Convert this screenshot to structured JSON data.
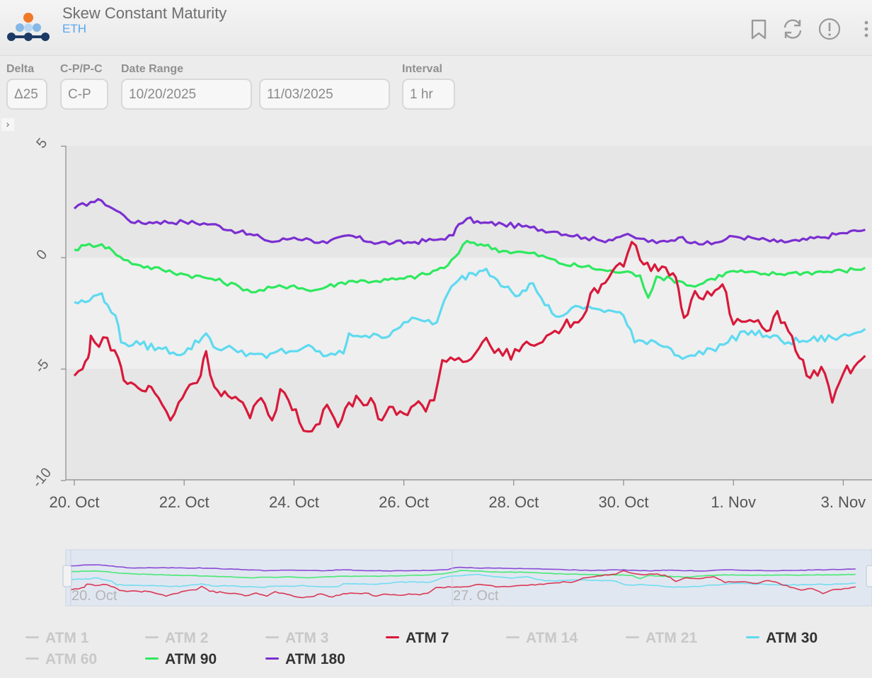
{
  "header": {
    "title": "Skew Constant Maturity",
    "subtitle": "ETH",
    "icons": [
      "bookmark-icon",
      "refresh-icon",
      "alert-icon",
      "more-icon"
    ]
  },
  "controls": {
    "delta": {
      "label": "Delta",
      "value": "Δ25"
    },
    "cp": {
      "label": "C-P/P-C",
      "value": "C-P"
    },
    "date_range": {
      "label": "Date Range",
      "start": "10/20/2025",
      "end": "11/03/2025"
    },
    "interval": {
      "label": "Interval",
      "value": "1 hr"
    }
  },
  "chart_data": {
    "type": "line",
    "x_axis": {
      "ticks": [
        "20. Oct",
        "22. Oct",
        "24. Oct",
        "26. Oct",
        "28. Oct",
        "30. Oct",
        "1. Nov",
        "3. Nov"
      ],
      "range_days": [
        0,
        14.5
      ]
    },
    "y_axis": {
      "ticks": [
        "5",
        "0",
        "-5",
        "-10"
      ],
      "range": [
        -10,
        5
      ]
    },
    "navigator": {
      "labels": [
        "20. Oct",
        "27. Oct"
      ]
    },
    "series": [
      {
        "name": "ATM 180",
        "color": "#7b2fd0",
        "visible": true,
        "points": [
          [
            0,
            2.2
          ],
          [
            0.3,
            2.5
          ],
          [
            0.5,
            2.55
          ],
          [
            0.7,
            2.2
          ],
          [
            0.9,
            1.9
          ],
          [
            1.1,
            1.55
          ],
          [
            1.5,
            1.6
          ],
          [
            2.0,
            1.6
          ],
          [
            2.5,
            1.5
          ],
          [
            3.0,
            1.15
          ],
          [
            3.4,
            0.9
          ],
          [
            3.6,
            0.7
          ],
          [
            4.0,
            0.9
          ],
          [
            4.3,
            0.8
          ],
          [
            4.6,
            0.65
          ],
          [
            5.0,
            1.0
          ],
          [
            5.4,
            0.7
          ],
          [
            5.8,
            0.65
          ],
          [
            6.2,
            0.7
          ],
          [
            6.6,
            0.8
          ],
          [
            6.9,
            1.0
          ],
          [
            7.0,
            1.5
          ],
          [
            7.15,
            1.75
          ],
          [
            7.4,
            1.55
          ],
          [
            7.8,
            1.5
          ],
          [
            8.3,
            1.35
          ],
          [
            8.8,
            1.15
          ],
          [
            9.3,
            0.9
          ],
          [
            9.6,
            0.75
          ],
          [
            10.0,
            1.0
          ],
          [
            10.3,
            0.85
          ],
          [
            10.6,
            0.65
          ],
          [
            11.0,
            0.9
          ],
          [
            11.3,
            0.7
          ],
          [
            11.6,
            0.6
          ],
          [
            12.0,
            0.95
          ],
          [
            12.4,
            0.85
          ],
          [
            12.8,
            0.7
          ],
          [
            13.2,
            0.75
          ],
          [
            13.6,
            0.9
          ],
          [
            14.0,
            1.1
          ],
          [
            14.4,
            1.25
          ]
        ]
      },
      {
        "name": "ATM 90",
        "color": "#2ee85e",
        "visible": true,
        "points": [
          [
            0,
            0.35
          ],
          [
            0.2,
            0.55
          ],
          [
            0.5,
            0.6
          ],
          [
            0.7,
            0.3
          ],
          [
            0.9,
            -0.1
          ],
          [
            1.2,
            -0.35
          ],
          [
            1.6,
            -0.55
          ],
          [
            2.0,
            -0.75
          ],
          [
            2.5,
            -0.95
          ],
          [
            3.0,
            -1.3
          ],
          [
            3.3,
            -1.55
          ],
          [
            3.6,
            -1.35
          ],
          [
            4.0,
            -1.25
          ],
          [
            4.3,
            -1.5
          ],
          [
            4.6,
            -1.3
          ],
          [
            5.0,
            -1.05
          ],
          [
            5.5,
            -1.05
          ],
          [
            6.0,
            -0.95
          ],
          [
            6.4,
            -0.75
          ],
          [
            6.8,
            -0.35
          ],
          [
            7.0,
            0.2
          ],
          [
            7.15,
            0.75
          ],
          [
            7.4,
            0.6
          ],
          [
            7.8,
            0.3
          ],
          [
            8.3,
            0.2
          ],
          [
            8.6,
            0.0
          ],
          [
            8.9,
            -0.3
          ],
          [
            9.3,
            -0.4
          ],
          [
            9.7,
            -0.6
          ],
          [
            10.0,
            -0.65
          ],
          [
            10.3,
            -0.8
          ],
          [
            10.45,
            -1.8
          ],
          [
            10.6,
            -0.85
          ],
          [
            11.0,
            -1.05
          ],
          [
            11.3,
            -1.3
          ],
          [
            11.6,
            -0.95
          ],
          [
            12.0,
            -0.6
          ],
          [
            12.5,
            -0.75
          ],
          [
            13.0,
            -0.7
          ],
          [
            13.5,
            -0.65
          ],
          [
            14.0,
            -0.6
          ],
          [
            14.4,
            -0.45
          ]
        ]
      },
      {
        "name": "ATM 30",
        "color": "#5edaf0",
        "visible": true,
        "points": [
          [
            0,
            -2.0
          ],
          [
            0.2,
            -2.0
          ],
          [
            0.5,
            -1.6
          ],
          [
            0.6,
            -2.1
          ],
          [
            0.75,
            -2.6
          ],
          [
            0.85,
            -3.8
          ],
          [
            1.2,
            -3.9
          ],
          [
            1.6,
            -4.1
          ],
          [
            2.0,
            -4.3
          ],
          [
            2.4,
            -3.4
          ],
          [
            2.6,
            -4.1
          ],
          [
            2.9,
            -4.1
          ],
          [
            3.2,
            -4.3
          ],
          [
            3.5,
            -4.5
          ],
          [
            3.7,
            -4.2
          ],
          [
            4.0,
            -4.2
          ],
          [
            4.2,
            -4.0
          ],
          [
            4.4,
            -4.2
          ],
          [
            4.6,
            -4.4
          ],
          [
            4.9,
            -4.3
          ],
          [
            5.0,
            -3.4
          ],
          [
            5.3,
            -3.5
          ],
          [
            5.6,
            -3.6
          ],
          [
            6.0,
            -2.9
          ],
          [
            6.3,
            -2.8
          ],
          [
            6.6,
            -2.9
          ],
          [
            6.8,
            -1.6
          ],
          [
            7.0,
            -1.0
          ],
          [
            7.25,
            -0.7
          ],
          [
            7.5,
            -0.5
          ],
          [
            7.7,
            -1.0
          ],
          [
            7.9,
            -1.3
          ],
          [
            8.1,
            -1.7
          ],
          [
            8.35,
            -1.15
          ],
          [
            8.5,
            -1.8
          ],
          [
            8.7,
            -2.5
          ],
          [
            8.9,
            -2.6
          ],
          [
            9.2,
            -2.2
          ],
          [
            9.5,
            -2.3
          ],
          [
            9.8,
            -2.4
          ],
          [
            10.0,
            -2.6
          ],
          [
            10.2,
            -3.8
          ],
          [
            10.5,
            -3.7
          ],
          [
            10.8,
            -4.0
          ],
          [
            11.0,
            -4.4
          ],
          [
            11.3,
            -4.4
          ],
          [
            11.6,
            -4.1
          ],
          [
            11.9,
            -3.8
          ],
          [
            12.2,
            -3.3
          ],
          [
            12.6,
            -3.5
          ],
          [
            13.0,
            -3.8
          ],
          [
            13.4,
            -3.7
          ],
          [
            13.8,
            -3.6
          ],
          [
            14.1,
            -3.5
          ],
          [
            14.4,
            -3.2
          ]
        ]
      },
      {
        "name": "ATM 7",
        "color": "#d8193a",
        "visible": true,
        "points": [
          [
            0,
            -5.3
          ],
          [
            0.15,
            -5.0
          ],
          [
            0.25,
            -4.5
          ],
          [
            0.3,
            -3.5
          ],
          [
            0.45,
            -4.0
          ],
          [
            0.6,
            -3.6
          ],
          [
            0.8,
            -4.5
          ],
          [
            0.9,
            -5.5
          ],
          [
            1.1,
            -5.7
          ],
          [
            1.3,
            -6.0
          ],
          [
            1.4,
            -5.8
          ],
          [
            1.6,
            -6.6
          ],
          [
            1.75,
            -7.3
          ],
          [
            1.9,
            -6.5
          ],
          [
            2.1,
            -5.7
          ],
          [
            2.3,
            -5.3
          ],
          [
            2.4,
            -4.2
          ],
          [
            2.55,
            -5.8
          ],
          [
            2.8,
            -6.2
          ],
          [
            3.0,
            -6.4
          ],
          [
            3.2,
            -7.2
          ],
          [
            3.4,
            -6.3
          ],
          [
            3.6,
            -7.3
          ],
          [
            3.75,
            -5.9
          ],
          [
            3.9,
            -6.4
          ],
          [
            4.1,
            -7.4
          ],
          [
            4.25,
            -7.8
          ],
          [
            4.4,
            -7.5
          ],
          [
            4.6,
            -6.6
          ],
          [
            4.8,
            -7.6
          ],
          [
            5.0,
            -6.5
          ],
          [
            5.2,
            -6.4
          ],
          [
            5.4,
            -6.3
          ],
          [
            5.6,
            -7.3
          ],
          [
            5.8,
            -6.7
          ],
          [
            6.0,
            -7.0
          ],
          [
            6.2,
            -6.6
          ],
          [
            6.4,
            -6.9
          ],
          [
            6.55,
            -6.4
          ],
          [
            6.7,
            -4.6
          ],
          [
            7.0,
            -4.5
          ],
          [
            7.3,
            -4.3
          ],
          [
            7.5,
            -3.6
          ],
          [
            7.8,
            -4.4
          ],
          [
            8.1,
            -4.2
          ],
          [
            8.3,
            -3.9
          ],
          [
            8.6,
            -3.5
          ],
          [
            8.9,
            -3.1
          ],
          [
            9.1,
            -2.9
          ],
          [
            9.25,
            -2.7
          ],
          [
            9.4,
            -1.6
          ],
          [
            9.6,
            -1.2
          ],
          [
            9.8,
            -0.6
          ],
          [
            10.0,
            -0.4
          ],
          [
            10.15,
            0.7
          ],
          [
            10.3,
            -0.1
          ],
          [
            10.5,
            -0.6
          ],
          [
            10.7,
            -0.4
          ],
          [
            10.9,
            -0.7
          ],
          [
            11.0,
            -1.4
          ],
          [
            11.1,
            -2.7
          ],
          [
            11.3,
            -1.5
          ],
          [
            11.6,
            -1.7
          ],
          [
            11.8,
            -1.2
          ],
          [
            12.0,
            -3.0
          ],
          [
            12.3,
            -2.8
          ],
          [
            12.6,
            -3.3
          ],
          [
            12.8,
            -2.4
          ],
          [
            13.0,
            -3.3
          ],
          [
            13.2,
            -4.5
          ],
          [
            13.4,
            -5.4
          ],
          [
            13.6,
            -4.9
          ],
          [
            13.8,
            -6.5
          ],
          [
            14.0,
            -5.2
          ],
          [
            14.2,
            -4.9
          ],
          [
            14.4,
            -4.4
          ]
        ]
      }
    ],
    "legend": [
      {
        "name": "ATM 1",
        "color": "#cccccc",
        "visible": false
      },
      {
        "name": "ATM 2",
        "color": "#cccccc",
        "visible": false
      },
      {
        "name": "ATM 3",
        "color": "#cccccc",
        "visible": false
      },
      {
        "name": "ATM 7",
        "color": "#d8193a",
        "visible": true
      },
      {
        "name": "ATM 14",
        "color": "#cccccc",
        "visible": false
      },
      {
        "name": "ATM 21",
        "color": "#cccccc",
        "visible": false
      },
      {
        "name": "ATM 30",
        "color": "#5edaf0",
        "visible": true
      },
      {
        "name": "ATM 60",
        "color": "#cccccc",
        "visible": false
      },
      {
        "name": "ATM 90",
        "color": "#2ee85e",
        "visible": true
      },
      {
        "name": "ATM 180",
        "color": "#7b2fd0",
        "visible": true
      }
    ]
  }
}
